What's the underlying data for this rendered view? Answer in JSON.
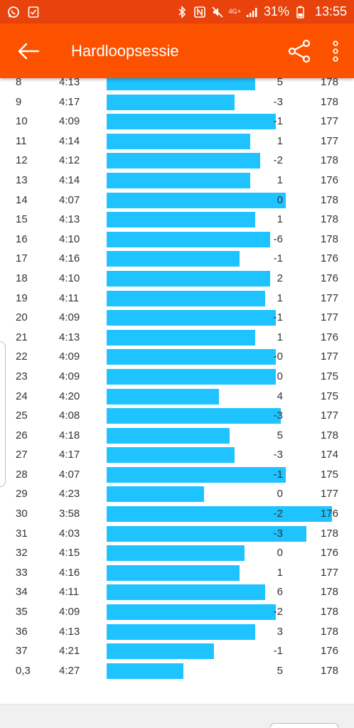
{
  "status_bar": {
    "left_icons": [
      "whatsapp-icon",
      "checklist-icon"
    ],
    "network_label": "4G+",
    "battery": "31%",
    "time": "13:55",
    "color": "#e8430c"
  },
  "app_bar": {
    "title": "Hardloopsessie",
    "color": "#fc5200"
  },
  "bar_color": "#1ec3ff",
  "splits": [
    {
      "km": "8",
      "pace": "4:13",
      "elev": "5",
      "hr": "178",
      "pace_sec": 253
    },
    {
      "km": "9",
      "pace": "4:17",
      "elev": "-3",
      "hr": "178",
      "pace_sec": 257
    },
    {
      "km": "10",
      "pace": "4:09",
      "elev": "-1",
      "hr": "177",
      "pace_sec": 249
    },
    {
      "km": "11",
      "pace": "4:14",
      "elev": "1",
      "hr": "177",
      "pace_sec": 254
    },
    {
      "km": "12",
      "pace": "4:12",
      "elev": "-2",
      "hr": "178",
      "pace_sec": 252
    },
    {
      "km": "13",
      "pace": "4:14",
      "elev": "1",
      "hr": "176",
      "pace_sec": 254
    },
    {
      "km": "14",
      "pace": "4:07",
      "elev": "0",
      "hr": "178",
      "pace_sec": 247
    },
    {
      "km": "15",
      "pace": "4:13",
      "elev": "1",
      "hr": "178",
      "pace_sec": 253
    },
    {
      "km": "16",
      "pace": "4:10",
      "elev": "-6",
      "hr": "178",
      "pace_sec": 250
    },
    {
      "km": "17",
      "pace": "4:16",
      "elev": "-1",
      "hr": "176",
      "pace_sec": 256
    },
    {
      "km": "18",
      "pace": "4:10",
      "elev": "2",
      "hr": "176",
      "pace_sec": 250
    },
    {
      "km": "19",
      "pace": "4:11",
      "elev": "1",
      "hr": "177",
      "pace_sec": 251
    },
    {
      "km": "20",
      "pace": "4:09",
      "elev": "-1",
      "hr": "177",
      "pace_sec": 249
    },
    {
      "km": "21",
      "pace": "4:13",
      "elev": "1",
      "hr": "176",
      "pace_sec": 253
    },
    {
      "km": "22",
      "pace": "4:09",
      "elev": "-0",
      "hr": "177",
      "pace_sec": 249
    },
    {
      "km": "23",
      "pace": "4:09",
      "elev": "0",
      "hr": "175",
      "pace_sec": 249
    },
    {
      "km": "24",
      "pace": "4:20",
      "elev": "4",
      "hr": "175",
      "pace_sec": 260
    },
    {
      "km": "25",
      "pace": "4:08",
      "elev": "-3",
      "hr": "177",
      "pace_sec": 248
    },
    {
      "km": "26",
      "pace": "4:18",
      "elev": "5",
      "hr": "178",
      "pace_sec": 258
    },
    {
      "km": "27",
      "pace": "4:17",
      "elev": "-3",
      "hr": "174",
      "pace_sec": 257
    },
    {
      "km": "28",
      "pace": "4:07",
      "elev": "-1",
      "hr": "175",
      "pace_sec": 247
    },
    {
      "km": "29",
      "pace": "4:23",
      "elev": "0",
      "hr": "177",
      "pace_sec": 263
    },
    {
      "km": "30",
      "pace": "3:58",
      "elev": "-2",
      "hr": "176",
      "pace_sec": 238
    },
    {
      "km": "31",
      "pace": "4:03",
      "elev": "-3",
      "hr": "178",
      "pace_sec": 243
    },
    {
      "km": "32",
      "pace": "4:15",
      "elev": "0",
      "hr": "176",
      "pace_sec": 255
    },
    {
      "km": "33",
      "pace": "4:16",
      "elev": "1",
      "hr": "177",
      "pace_sec": 256
    },
    {
      "km": "34",
      "pace": "4:11",
      "elev": "6",
      "hr": "178",
      "pace_sec": 251
    },
    {
      "km": "35",
      "pace": "4:09",
      "elev": "-2",
      "hr": "178",
      "pace_sec": 249
    },
    {
      "km": "36",
      "pace": "4:13",
      "elev": "3",
      "hr": "178",
      "pace_sec": 253
    },
    {
      "km": "37",
      "pace": "4:21",
      "elev": "-1",
      "hr": "176",
      "pace_sec": 261
    },
    {
      "km": "0,3",
      "pace": "4:27",
      "elev": "5",
      "hr": "178",
      "pace_sec": 267
    }
  ]
}
